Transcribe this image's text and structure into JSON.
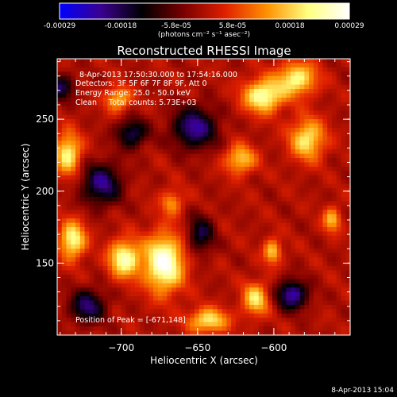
{
  "colorbar": {
    "tick_labels": [
      "-0.00029",
      "-0.00018",
      "-5.8e-05",
      "5.8e-05",
      "0.00018",
      "0.00029"
    ],
    "unit_label": "(photons cm⁻² s⁻¹ asec⁻²)",
    "range": [
      -0.00029,
      0.00029
    ],
    "colors": [
      "#0000ff",
      "#3a0090",
      "#000000",
      "#7a0000",
      "#e02000",
      "#ff9000",
      "#ffff80",
      "#ffffff"
    ]
  },
  "info": {
    "line1": "8-Apr-2013 17:50:30.000 to 17:54:16.000",
    "line2": "Detectors: 3F 5F 6F 7F 8F 9F, Att 0",
    "line3": "Energy Range: 25.0 - 50.0 keV",
    "line4": "Clean     Total counts: 5.73E+03"
  },
  "peak_text": "Position of Peak = [-671,148]",
  "date_stamp": "8-Apr-2013 15:04",
  "chart_data": {
    "type": "heatmap",
    "title": "Reconstructed RHESSI Image",
    "xlabel": "Heliocentric X (arcsec)",
    "ylabel": "Heliocentric Y (arcsec)",
    "xlim": [
      -742,
      -550
    ],
    "ylim": [
      100,
      292
    ],
    "xticks": [
      -700,
      -650,
      -600
    ],
    "yticks": [
      150,
      200,
      250
    ],
    "xtick_labels": [
      "−700",
      "−650",
      "−600"
    ],
    "ytick_labels": [
      "150",
      "200",
      "250"
    ],
    "peak_position": [
      -671,
      148
    ],
    "blobs": [
      {
        "x": -672,
        "y": 150,
        "amp": 1.0,
        "sx": 9,
        "sy": 14
      },
      {
        "x": -698,
        "y": 153,
        "amp": 0.85,
        "sx": 7,
        "sy": 9
      },
      {
        "x": -732,
        "y": 166,
        "amp": 0.8,
        "sx": 6,
        "sy": 9
      },
      {
        "x": -735,
        "y": 226,
        "amp": 0.75,
        "sx": 6,
        "sy": 10
      },
      {
        "x": -607,
        "y": 266,
        "amp": 0.85,
        "sx": 9,
        "sy": 8
      },
      {
        "x": -585,
        "y": 278,
        "amp": 0.75,
        "sx": 9,
        "sy": 8
      },
      {
        "x": -578,
        "y": 236,
        "amp": 0.7,
        "sx": 8,
        "sy": 10
      },
      {
        "x": -622,
        "y": 222,
        "amp": 0.6,
        "sx": 7,
        "sy": 7
      },
      {
        "x": -643,
        "y": 110,
        "amp": 0.7,
        "sx": 9,
        "sy": 6
      },
      {
        "x": -612,
        "y": 125,
        "amp": 0.65,
        "sx": 6,
        "sy": 8
      },
      {
        "x": -702,
        "y": 264,
        "amp": 0.55,
        "sx": 6,
        "sy": 6
      },
      {
        "x": -667,
        "y": 192,
        "amp": 0.45,
        "sx": 5,
        "sy": 6
      },
      {
        "x": -601,
        "y": 158,
        "amp": 0.6,
        "sx": 4,
        "sy": 6
      },
      {
        "x": -562,
        "y": 180,
        "amp": 0.55,
        "sx": 4,
        "sy": 6
      },
      {
        "x": -652,
        "y": 244,
        "amp": -0.75,
        "sx": 10,
        "sy": 10
      },
      {
        "x": -713,
        "y": 205,
        "amp": -0.7,
        "sx": 9,
        "sy": 10
      },
      {
        "x": -693,
        "y": 240,
        "amp": -0.6,
        "sx": 7,
        "sy": 7
      },
      {
        "x": -722,
        "y": 120,
        "amp": -0.65,
        "sx": 8,
        "sy": 8
      },
      {
        "x": -588,
        "y": 128,
        "amp": -0.8,
        "sx": 7,
        "sy": 7
      },
      {
        "x": -648,
        "y": 170,
        "amp": -0.55,
        "sx": 6,
        "sy": 9
      },
      {
        "x": -740,
        "y": 272,
        "amp": -0.6,
        "sx": 6,
        "sy": 6
      }
    ]
  }
}
